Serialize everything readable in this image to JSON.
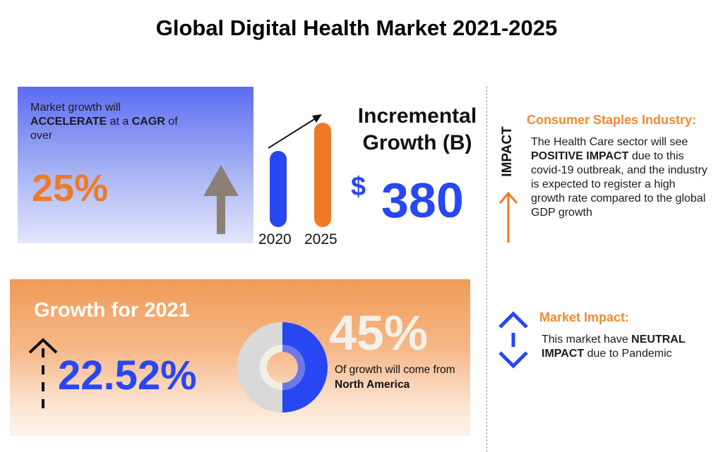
{
  "title": "Global Digital Health Market 2021-2025",
  "cagr_card": {
    "text_1": "Market growth will",
    "text_bold_1": "ACCELERATE",
    "text_2": " at a ",
    "text_bold_2": "CAGR",
    "text_3": " of over",
    "value": "25%",
    "arrow_icon": "up-arrow-icon"
  },
  "bars": {
    "year_2020": "2020",
    "year_2025": "2025",
    "color_2020": "#2747f2",
    "color_2025": "#ef7a25"
  },
  "incremental": {
    "title": "Incremental Growth (B)",
    "currency": "$",
    "value": "380"
  },
  "impact": {
    "vertical_label": "IMPACT",
    "consumer_title": "Consumer Staples Industry:",
    "consumer_text_1": "The Health Care sector will see ",
    "consumer_bold": "POSITIVE IMPACT",
    "consumer_text_2": " due to this covid-19 outbreak, and the industry is expected to register a high growth rate compared to the global GDP growth",
    "market_title": "Market Impact:",
    "market_text_1": "This market have ",
    "market_bold": "NEUTRAL IMPACT",
    "market_text_2": " due to Pandemic"
  },
  "growth_card": {
    "title": "Growth for 2021",
    "value": "22.52%",
    "na_percent": "45%",
    "na_text": "Of growth will come from",
    "na_region": "North America",
    "na_share": 0.45
  },
  "colors": {
    "accent_orange": "#ef7a25",
    "accent_blue": "#2747f2"
  }
}
